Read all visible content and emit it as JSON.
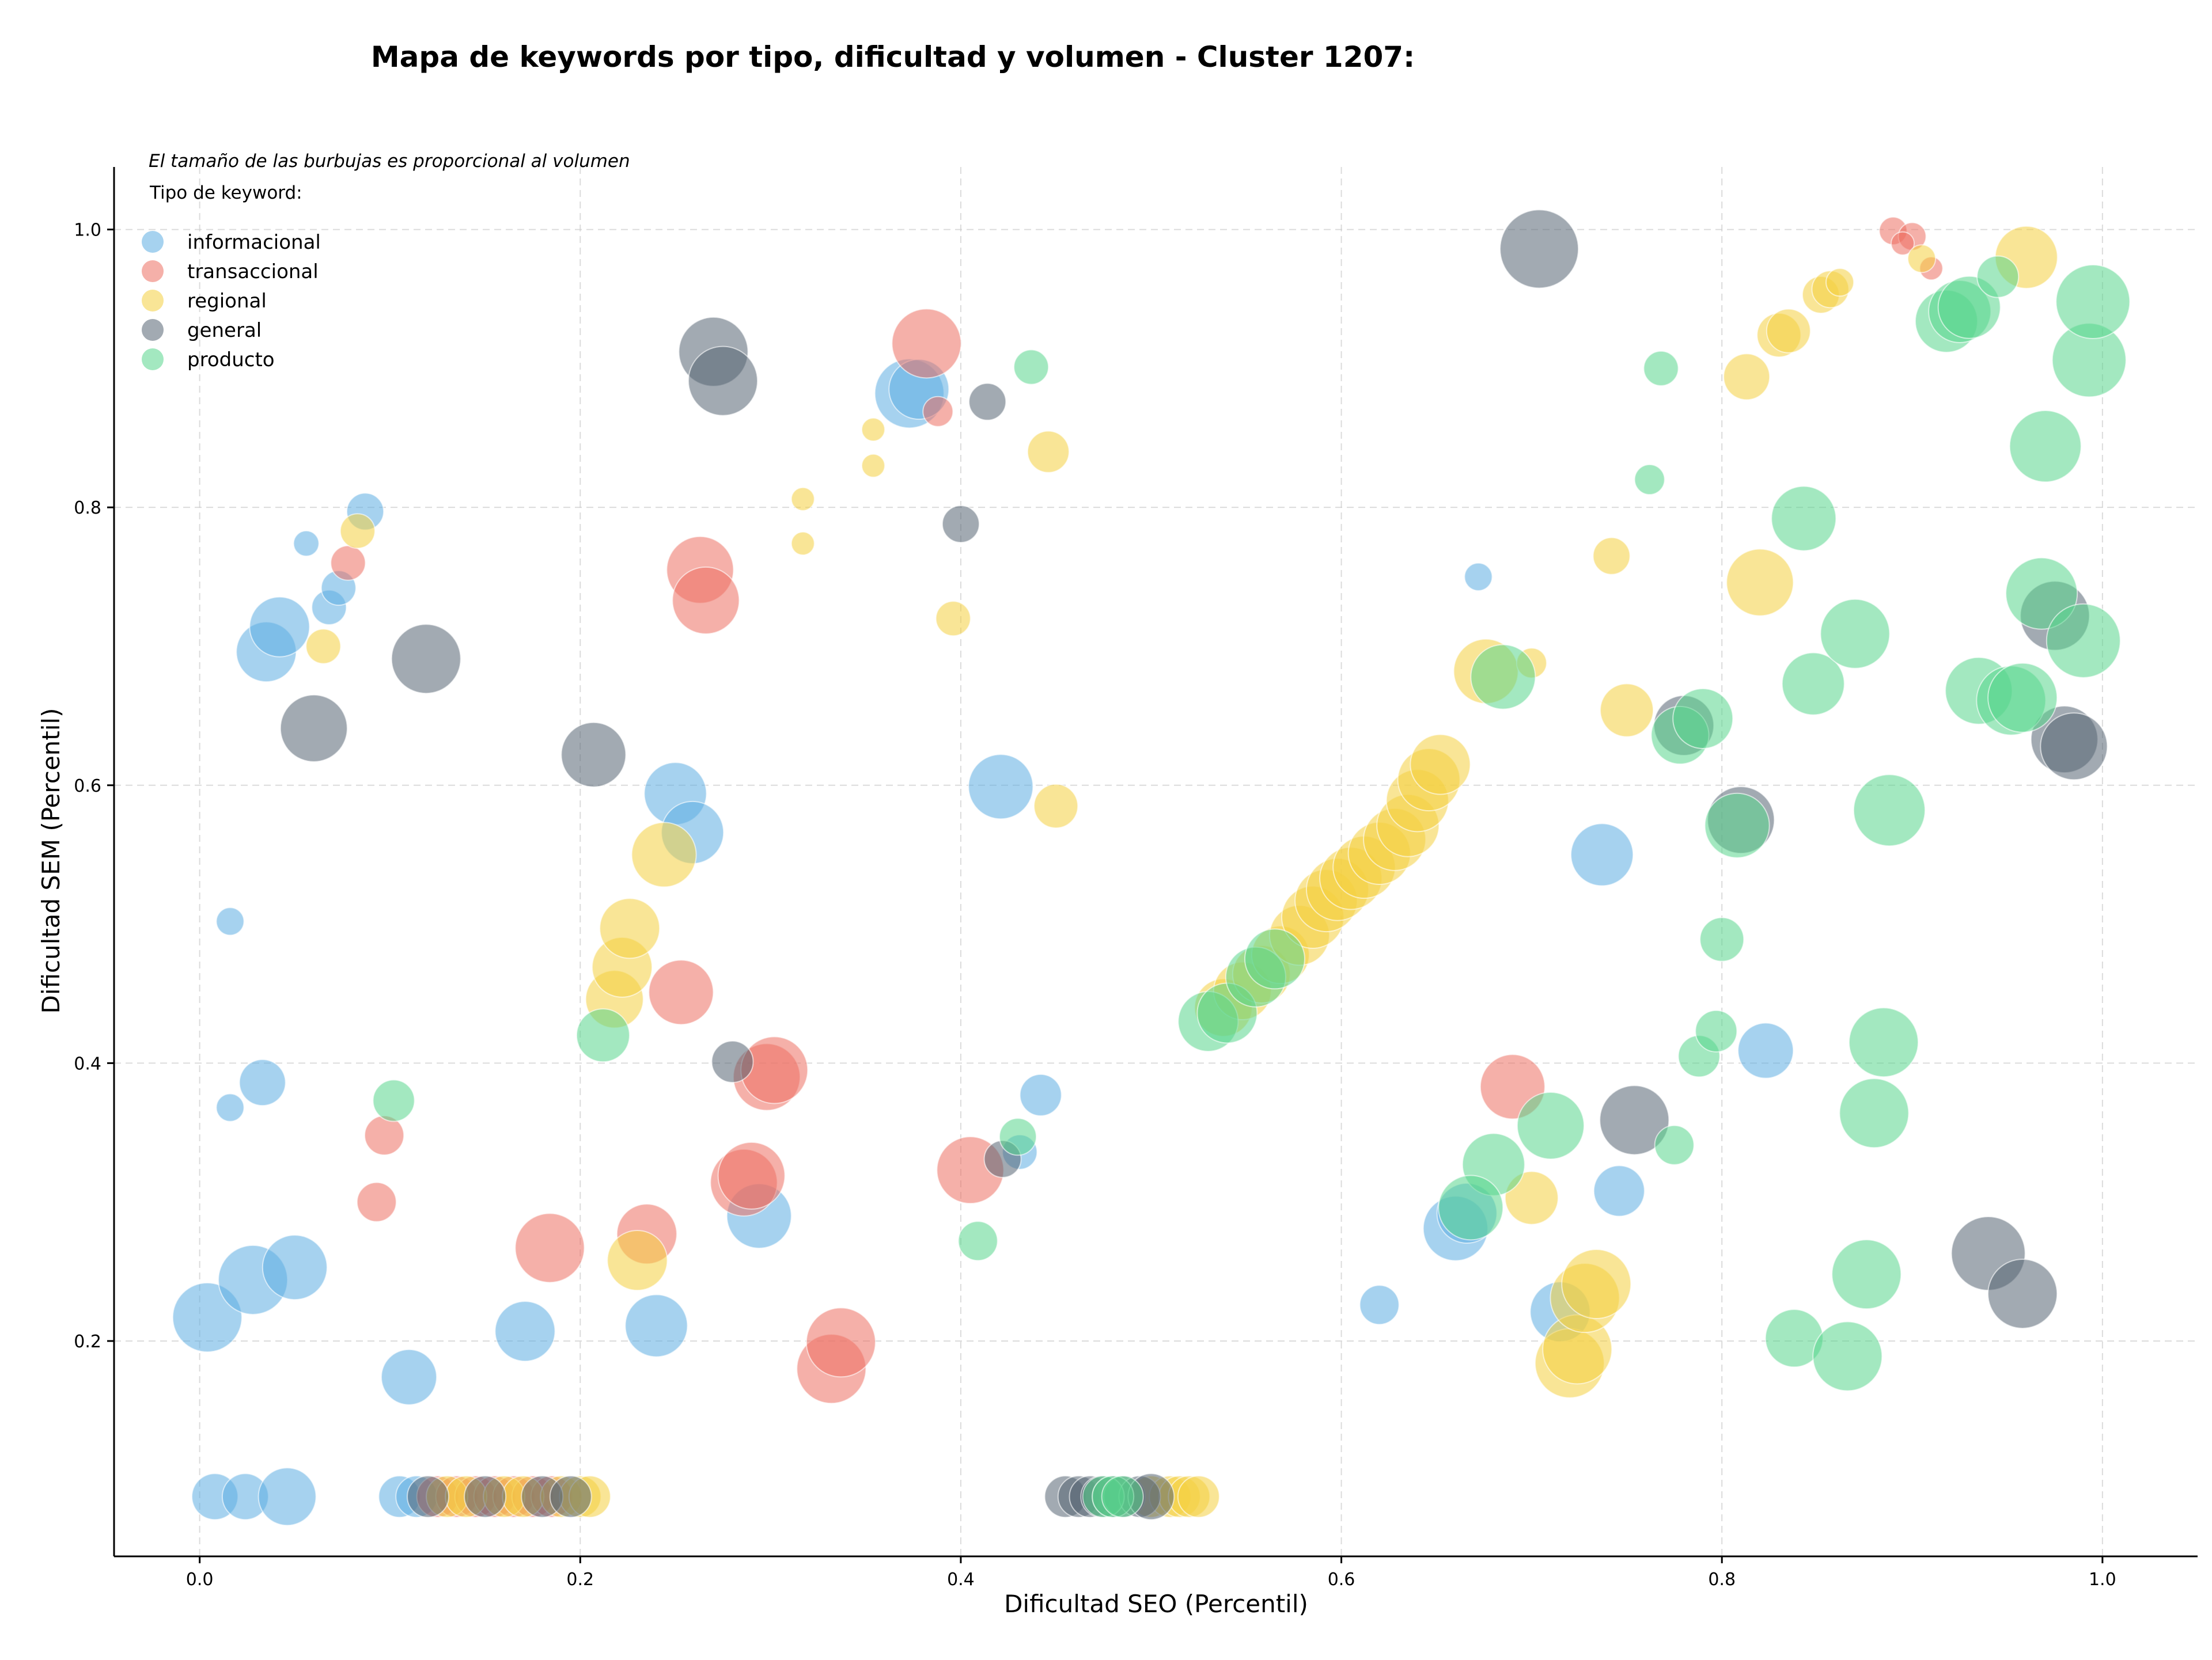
{
  "chart_data": {
    "type": "scatter",
    "title": "Mapa de keywords por tipo, dificultad y volumen - Cluster 1207:",
    "xlabel": "Dificultad SEO (Percentil)",
    "ylabel": "Dificultad SEM (Percentil)",
    "note": "El tamaño de las burbujas es proporcional al volumen",
    "legend_title": "Tipo de keyword:",
    "legend_position": "top-left",
    "grid": true,
    "xlim": [
      -0.045,
      1.05
    ],
    "ylim": [
      0.045,
      1.045
    ],
    "xticks": [
      0.0,
      0.2,
      0.4,
      0.6,
      0.8,
      1.0
    ],
    "yticks": [
      0.2,
      0.4,
      0.6,
      0.8,
      1.0
    ],
    "xtick_labels": [
      "0.0",
      "0.2",
      "0.4",
      "0.6",
      "0.8",
      "1.0"
    ],
    "ytick_labels": [
      "0.2",
      "0.4",
      "0.6",
      "0.8",
      "1.0"
    ],
    "series": [
      {
        "name": "informacional",
        "color": "#5DADE2",
        "points": [
          [
            0.004,
            0.217,
            3
          ],
          [
            0.028,
            0.244,
            3
          ],
          [
            0.05,
            0.253,
            2.8
          ],
          [
            0.035,
            0.696,
            2.6
          ],
          [
            0.042,
            0.714,
            2.6
          ],
          [
            0.016,
            0.502,
            1.2
          ],
          [
            0.016,
            0.368,
            1.2
          ],
          [
            0.033,
            0.386,
            2
          ],
          [
            0.056,
            0.774,
            1.1
          ],
          [
            0.068,
            0.728,
            1.5
          ],
          [
            0.073,
            0.742,
            1.5
          ],
          [
            0.087,
            0.797,
            1.6
          ],
          [
            0.11,
            0.174,
            2.4
          ],
          [
            0.171,
            0.207,
            2.6
          ],
          [
            0.24,
            0.211,
            2.7
          ],
          [
            0.25,
            0.594,
            2.7
          ],
          [
            0.259,
            0.566,
            2.7
          ],
          [
            0.294,
            0.29,
            2.8
          ],
          [
            0.373,
            0.882,
            3
          ],
          [
            0.378,
            0.885,
            2.6
          ],
          [
            0.421,
            0.599,
            2.8
          ],
          [
            0.431,
            0.336,
            1.5
          ],
          [
            0.442,
            0.377,
            1.8
          ],
          [
            0.62,
            0.226,
            1.7
          ],
          [
            0.672,
            0.75,
            1.2
          ],
          [
            0.66,
            0.281,
            2.8
          ],
          [
            0.666,
            0.292,
            2.6
          ],
          [
            0.715,
            0.221,
            2.6
          ],
          [
            0.737,
            0.55,
            2.7
          ],
          [
            0.746,
            0.308,
            2.2
          ],
          [
            0.823,
            0.409,
            2.4
          ],
          [
            0.008,
            0.088,
            2
          ],
          [
            0.024,
            0.088,
            2
          ],
          [
            0.046,
            0.088,
            2.5
          ],
          [
            0.105,
            0.088,
            1.8
          ],
          [
            0.114,
            0.088,
            1.8
          ]
        ]
      },
      {
        "name": "transaccional",
        "color": "#EC7063",
        "points": [
          [
            0.078,
            0.76,
            1.5
          ],
          [
            0.097,
            0.348,
            1.7
          ],
          [
            0.093,
            0.3,
            1.7
          ],
          [
            0.184,
            0.267,
            3
          ],
          [
            0.235,
            0.277,
            2.6
          ],
          [
            0.253,
            0.451,
            2.8
          ],
          [
            0.263,
            0.755,
            2.9
          ],
          [
            0.266,
            0.733,
            2.9
          ],
          [
            0.286,
            0.314,
            2.9
          ],
          [
            0.29,
            0.319,
            2.9
          ],
          [
            0.298,
            0.39,
            2.9
          ],
          [
            0.302,
            0.395,
            2.9
          ],
          [
            0.332,
            0.18,
            3
          ],
          [
            0.337,
            0.199,
            3
          ],
          [
            0.382,
            0.918,
            3
          ],
          [
            0.388,
            0.869,
            1.3
          ],
          [
            0.405,
            0.323,
            2.9
          ],
          [
            0.69,
            0.383,
            2.8
          ],
          [
            0.89,
            0.999,
            1.2
          ],
          [
            0.9,
            0.995,
            1.2
          ],
          [
            0.895,
            0.99,
            1
          ],
          [
            0.91,
            0.972,
            1
          ],
          [
            0.125,
            0.088,
            1.8
          ],
          [
            0.135,
            0.088,
            1.8
          ],
          [
            0.145,
            0.088,
            1.8
          ],
          [
            0.155,
            0.088,
            1.8
          ],
          [
            0.165,
            0.088,
            1.8
          ],
          [
            0.175,
            0.088,
            1.8
          ],
          [
            0.185,
            0.088,
            1.8
          ]
        ]
      },
      {
        "name": "regional",
        "color": "#F4D03F",
        "points": [
          [
            0.083,
            0.783,
            1.5
          ],
          [
            0.065,
            0.7,
            1.5
          ],
          [
            0.218,
            0.446,
            2.5
          ],
          [
            0.222,
            0.469,
            2.6
          ],
          [
            0.226,
            0.497,
            2.6
          ],
          [
            0.23,
            0.258,
            2.6
          ],
          [
            0.244,
            0.55,
            2.8
          ],
          [
            0.317,
            0.806,
            1
          ],
          [
            0.317,
            0.774,
            1
          ],
          [
            0.354,
            0.856,
            1
          ],
          [
            0.354,
            0.83,
            1
          ],
          [
            0.396,
            0.72,
            1.5
          ],
          [
            0.446,
            0.84,
            1.8
          ],
          [
            0.45,
            0.585,
            1.9
          ],
          [
            0.538,
            0.44,
            2.5
          ],
          [
            0.548,
            0.452,
            2.5
          ],
          [
            0.558,
            0.464,
            2.5
          ],
          [
            0.568,
            0.478,
            2.5
          ],
          [
            0.578,
            0.492,
            2.6
          ],
          [
            0.585,
            0.505,
            2.7
          ],
          [
            0.592,
            0.517,
            2.7
          ],
          [
            0.598,
            0.525,
            2.7
          ],
          [
            0.605,
            0.533,
            2.7
          ],
          [
            0.612,
            0.541,
            2.7
          ],
          [
            0.62,
            0.551,
            2.7
          ],
          [
            0.628,
            0.561,
            2.7
          ],
          [
            0.635,
            0.571,
            2.7
          ],
          [
            0.64,
            0.589,
            2.7
          ],
          [
            0.646,
            0.604,
            2.7
          ],
          [
            0.652,
            0.615,
            2.6
          ],
          [
            0.676,
            0.682,
            2.8
          ],
          [
            0.7,
            0.688,
            1.3
          ],
          [
            0.7,
            0.303,
            2.3
          ],
          [
            0.72,
            0.184,
            3
          ],
          [
            0.724,
            0.194,
            3
          ],
          [
            0.728,
            0.231,
            3
          ],
          [
            0.734,
            0.241,
            3
          ],
          [
            0.742,
            0.765,
            1.6
          ],
          [
            0.75,
            0.654,
            2.3
          ],
          [
            0.813,
            0.894,
            2
          ],
          [
            0.82,
            0.746,
            2.9
          ],
          [
            0.83,
            0.924,
            1.9
          ],
          [
            0.835,
            0.927,
            1.9
          ],
          [
            0.852,
            0.953,
            1.6
          ],
          [
            0.857,
            0.957,
            1.6
          ],
          [
            0.862,
            0.962,
            1.2
          ],
          [
            0.905,
            0.979,
            1.2
          ],
          [
            0.96,
            0.98,
            2.7
          ],
          [
            0.13,
            0.088,
            1.8
          ],
          [
            0.14,
            0.088,
            1.8
          ],
          [
            0.16,
            0.088,
            1.8
          ],
          [
            0.17,
            0.088,
            1.8
          ],
          [
            0.19,
            0.088,
            1.8
          ],
          [
            0.2,
            0.088,
            1.8
          ],
          [
            0.205,
            0.088,
            1.8
          ],
          [
            0.5,
            0.088,
            1.8
          ],
          [
            0.51,
            0.088,
            1.8
          ],
          [
            0.515,
            0.088,
            1.8
          ],
          [
            0.52,
            0.088,
            1.8
          ],
          [
            0.525,
            0.088,
            1.8
          ]
        ]
      },
      {
        "name": "general",
        "color": "#566573",
        "points": [
          [
            0.06,
            0.641,
            2.9
          ],
          [
            0.119,
            0.691,
            3
          ],
          [
            0.207,
            0.622,
            2.8
          ],
          [
            0.27,
            0.912,
            3
          ],
          [
            0.275,
            0.891,
            3
          ],
          [
            0.28,
            0.401,
            1.8
          ],
          [
            0.4,
            0.788,
            1.6
          ],
          [
            0.414,
            0.876,
            1.6
          ],
          [
            0.422,
            0.331,
            1.6
          ],
          [
            0.704,
            0.986,
            3.4
          ],
          [
            0.754,
            0.359,
            3
          ],
          [
            0.78,
            0.643,
            2.6
          ],
          [
            0.81,
            0.575,
            2.9
          ],
          [
            0.94,
            0.263,
            3.2
          ],
          [
            0.958,
            0.234,
            3
          ],
          [
            0.975,
            0.722,
            3
          ],
          [
            0.98,
            0.633,
            2.9
          ],
          [
            0.985,
            0.628,
            2.9
          ],
          [
            0.12,
            0.088,
            1.8
          ],
          [
            0.15,
            0.088,
            1.8
          ],
          [
            0.18,
            0.088,
            1.8
          ],
          [
            0.195,
            0.088,
            1.8
          ],
          [
            0.455,
            0.088,
            1.8
          ],
          [
            0.462,
            0.088,
            1.8
          ],
          [
            0.468,
            0.088,
            1.8
          ],
          [
            0.474,
            0.088,
            1.8
          ],
          [
            0.48,
            0.088,
            1.8
          ],
          [
            0.486,
            0.088,
            1.8
          ],
          [
            0.494,
            0.088,
            1.8
          ],
          [
            0.5,
            0.088,
            2
          ]
        ]
      },
      {
        "name": "producto",
        "color": "#58D68D",
        "points": [
          [
            0.102,
            0.373,
            1.8
          ],
          [
            0.212,
            0.42,
            2.3
          ],
          [
            0.409,
            0.272,
            1.7
          ],
          [
            0.43,
            0.347,
            1.6
          ],
          [
            0.437,
            0.901,
            1.5
          ],
          [
            0.53,
            0.43,
            2.6
          ],
          [
            0.54,
            0.436,
            2.6
          ],
          [
            0.555,
            0.462,
            2.6
          ],
          [
            0.565,
            0.475,
            2.6
          ],
          [
            0.685,
            0.678,
            2.8
          ],
          [
            0.68,
            0.327,
            2.7
          ],
          [
            0.668,
            0.296,
            2.8
          ],
          [
            0.71,
            0.355,
            2.9
          ],
          [
            0.762,
            0.82,
            1.3
          ],
          [
            0.768,
            0.9,
            1.5
          ],
          [
            0.775,
            0.341,
            1.7
          ],
          [
            0.778,
            0.636,
            2.5
          ],
          [
            0.79,
            0.648,
            2.6
          ],
          [
            0.788,
            0.405,
            1.8
          ],
          [
            0.797,
            0.423,
            1.8
          ],
          [
            0.8,
            0.489,
            1.9
          ],
          [
            0.808,
            0.571,
            2.8
          ],
          [
            0.838,
            0.202,
            2.5
          ],
          [
            0.843,
            0.792,
            2.8
          ],
          [
            0.848,
            0.673,
            2.7
          ],
          [
            0.866,
            0.189,
            3
          ],
          [
            0.87,
            0.709,
            3
          ],
          [
            0.876,
            0.248,
            3
          ],
          [
            0.88,
            0.364,
            3
          ],
          [
            0.885,
            0.415,
            3
          ],
          [
            0.888,
            0.582,
            3.1
          ],
          [
            0.918,
            0.934,
            2.7
          ],
          [
            0.925,
            0.941,
            2.7
          ],
          [
            0.93,
            0.944,
            2.7
          ],
          [
            0.935,
            0.668,
            2.9
          ],
          [
            0.945,
            0.966,
            1.8
          ],
          [
            0.952,
            0.661,
            3
          ],
          [
            0.958,
            0.663,
            3
          ],
          [
            0.97,
            0.844,
            3.1
          ],
          [
            0.968,
            0.738,
            3.1
          ],
          [
            0.993,
            0.906,
            3.2
          ],
          [
            0.995,
            0.948,
            3.2
          ],
          [
            0.99,
            0.704,
            3.2
          ],
          [
            0.475,
            0.088,
            1.8
          ],
          [
            0.48,
            0.088,
            1.8
          ],
          [
            0.485,
            0.088,
            1.8
          ]
        ]
      }
    ]
  }
}
